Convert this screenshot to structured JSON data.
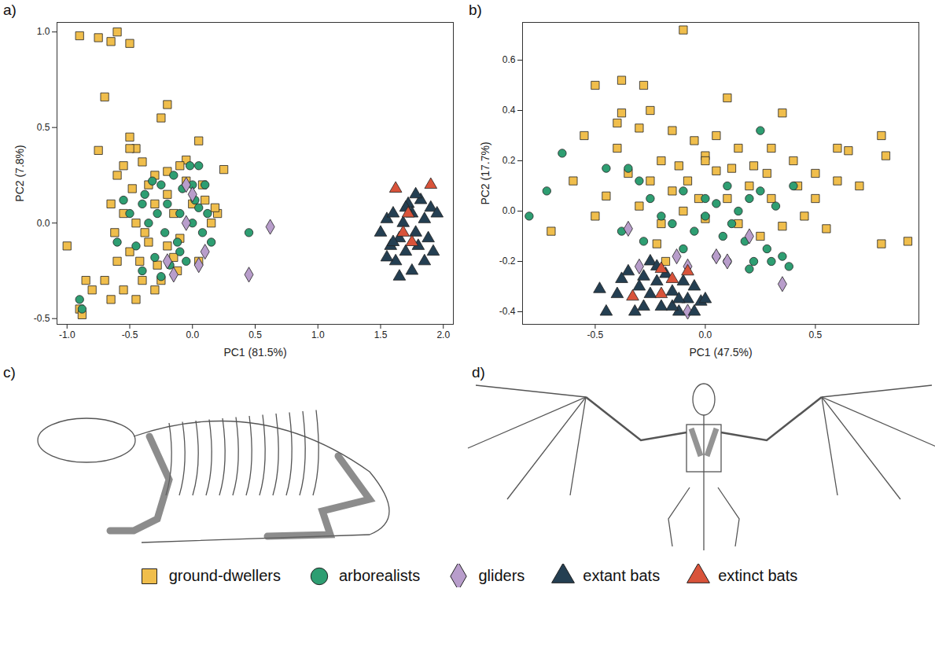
{
  "chart_data": [
    {
      "type": "scatter",
      "title": "a)",
      "xlabel": "PC1 (81.5%)",
      "ylabel": "PC2 (7.8%)",
      "xlim": [
        -1.08,
        2.08
      ],
      "ylim": [
        -0.53,
        1.05
      ],
      "xticks": [
        {
          "value": -1,
          "label": "-1.0"
        },
        -0.5,
        {
          "value": 0,
          "label": "0.0"
        },
        0.5,
        {
          "value": 1,
          "label": "1.0"
        },
        1.5,
        {
          "value": 2,
          "label": "2.0"
        }
      ],
      "yticks": [
        -0.5,
        {
          "value": 0,
          "label": "0.0"
        },
        0.5,
        {
          "value": 1,
          "label": "1.0"
        }
      ],
      "legend": "bottom",
      "series": [
        {
          "name": "ground-dwellers",
          "color": "#F0BE4C",
          "marker": "square",
          "x": [
            -0.9,
            -0.75,
            -0.65,
            -0.6,
            -0.5,
            -0.7,
            -0.2,
            -0.25,
            -0.75,
            -0.5,
            -0.45,
            -0.5,
            0.05,
            -0.55,
            -0.4,
            -0.3,
            -0.35,
            -0.48,
            -0.6,
            0.25,
            -0.05,
            -0.2,
            -0.1,
            -0.65,
            -0.55,
            -0.45,
            -0.38,
            -0.3,
            -0.2,
            -0.15,
            0.0,
            0.1,
            0.15,
            0.2,
            -0.5,
            -0.42,
            -0.35,
            -0.28,
            -0.2,
            -0.1,
            -1.0,
            -0.85,
            -0.8,
            -0.7,
            -0.9,
            -0.88,
            -0.65,
            -0.55,
            -0.45,
            -0.4,
            -0.6,
            -0.3,
            -0.25,
            -0.12,
            0.05,
            0.08,
            -0.05,
            -0.62,
            0.18,
            -0.15
          ],
          "y": [
            0.98,
            0.97,
            0.95,
            1.0,
            0.94,
            0.66,
            0.62,
            0.55,
            0.38,
            0.45,
            0.39,
            0.39,
            0.43,
            0.3,
            0.32,
            0.25,
            0.2,
            0.18,
            0.25,
            0.28,
            0.33,
            0.27,
            0.3,
            0.1,
            0.05,
            0.0,
            -0.05,
            0.1,
            0.15,
            0.05,
            0.1,
            0.12,
            0.0,
            0.05,
            -0.15,
            -0.2,
            -0.1,
            -0.22,
            -0.12,
            -0.08,
            -0.12,
            -0.3,
            -0.35,
            -0.3,
            -0.45,
            -0.48,
            -0.4,
            -0.35,
            -0.4,
            -0.3,
            -0.2,
            -0.35,
            -0.3,
            -0.25,
            -0.2,
            0.2,
            0.22,
            -0.05,
            0.08,
            -0.18
          ]
        },
        {
          "name": "arborealists",
          "color": "#2E9E72",
          "marker": "circle",
          "x": [
            -0.9,
            -0.88,
            -0.5,
            -0.45,
            -0.4,
            -0.35,
            -0.3,
            -0.28,
            -0.25,
            -0.22,
            -0.2,
            -0.15,
            -0.12,
            -0.1,
            -0.08,
            -0.05,
            -0.02,
            0.0,
            0.02,
            0.05,
            0.08,
            0.1,
            0.12,
            -0.4,
            -0.32,
            -0.18,
            0.15,
            -0.6,
            -0.55,
            0.45,
            -0.25,
            0.0,
            -0.1,
            0.05,
            -0.38
          ],
          "y": [
            -0.4,
            -0.45,
            0.05,
            -0.12,
            0.1,
            0.0,
            -0.18,
            0.05,
            0.2,
            -0.05,
            0.1,
            0.25,
            -0.1,
            0.05,
            0.18,
            -0.2,
            0.3,
            0.0,
            0.12,
            0.3,
            -0.05,
            0.2,
            0.05,
            -0.25,
            0.22,
            -0.22,
            -0.1,
            -0.1,
            0.12,
            -0.05,
            -0.28,
            0.2,
            -0.15,
            0.08,
            0.15
          ]
        },
        {
          "name": "gliders",
          "color": "#B89DCB",
          "marker": "diamond",
          "x": [
            -0.05,
            0.0,
            -0.2,
            -0.15,
            0.05,
            0.1,
            0.45,
            0.62,
            -0.05
          ],
          "y": [
            0.2,
            0.15,
            -0.2,
            -0.27,
            -0.22,
            -0.15,
            -0.27,
            -0.02,
            0.0
          ]
        },
        {
          "name": "extant bats",
          "color": "#243F52",
          "marker": "triangle",
          "x": [
            1.5,
            1.55,
            1.58,
            1.6,
            1.62,
            1.65,
            1.68,
            1.7,
            1.72,
            1.75,
            1.75,
            1.78,
            1.8,
            1.82,
            1.85,
            1.88,
            1.9,
            1.92,
            1.55,
            1.65,
            1.7,
            1.85,
            1.95,
            1.6,
            1.78
          ],
          "y": [
            -0.05,
            0.02,
            -0.12,
            0.05,
            -0.2,
            -0.08,
            0.0,
            -0.15,
            0.1,
            -0.25,
            0.05,
            -0.05,
            -0.12,
            0.12,
            0.02,
            -0.08,
            0.08,
            -0.15,
            -0.18,
            -0.28,
            0.08,
            -0.2,
            0.05,
            -0.1,
            0.15
          ]
        },
        {
          "name": "extinct bats",
          "color": "#D9533A",
          "marker": "triangle",
          "x": [
            1.62,
            1.9,
            1.72,
            1.68,
            1.75
          ],
          "y": [
            0.18,
            0.2,
            0.05,
            -0.05,
            -0.1
          ]
        }
      ]
    },
    {
      "type": "scatter",
      "title": "b)",
      "xlabel": "PC1 (47.5%)",
      "ylabel": "PC2 (17.7%)",
      "xlim": [
        -0.83,
        0.97
      ],
      "ylim": [
        -0.45,
        0.75
      ],
      "xticks": [
        -0.5,
        {
          "value": 0,
          "label": "0.0"
        },
        0.5
      ],
      "yticks": [
        -0.4,
        -0.2,
        {
          "value": 0,
          "label": "0.0"
        },
        0.2,
        0.4,
        0.6
      ],
      "legend": "bottom",
      "series": [
        {
          "name": "ground-dwellers",
          "color": "#F0BE4C",
          "marker": "square",
          "x": [
            -0.1,
            -0.5,
            -0.38,
            -0.28,
            -0.55,
            -0.38,
            -0.4,
            0.1,
            0.35,
            -0.25,
            -0.3,
            -0.15,
            -0.05,
            0.0,
            0.15,
            0.22,
            0.3,
            0.4,
            0.5,
            0.6,
            0.65,
            0.7,
            0.8,
            0.82,
            0.8,
            0.92,
            0.55,
            -0.6,
            -0.5,
            -0.7,
            -0.45,
            -0.35,
            -0.2,
            -0.12,
            -0.08,
            0.05,
            0.1,
            0.2,
            0.3,
            0.42,
            0.45,
            0.35,
            -0.3,
            -0.2,
            -0.1,
            0.0,
            0.15,
            -0.18,
            -0.22,
            0.05,
            -0.03,
            0.25,
            -0.4,
            0.6,
            0.12,
            -0.15,
            0.28,
            0.5,
            -0.25,
            0.0
          ],
          "y": [
            0.72,
            0.5,
            0.52,
            0.5,
            0.3,
            0.39,
            0.35,
            0.45,
            0.39,
            0.4,
            0.33,
            0.32,
            0.28,
            0.22,
            0.25,
            0.18,
            0.25,
            0.2,
            0.15,
            0.25,
            0.24,
            0.1,
            0.3,
            0.22,
            -0.13,
            -0.12,
            -0.07,
            0.12,
            -0.02,
            -0.08,
            0.06,
            0.15,
            0.2,
            0.18,
            0.12,
            0.16,
            0.05,
            0.1,
            0.05,
            0.1,
            -0.02,
            -0.06,
            0.02,
            -0.05,
            0.0,
            -0.03,
            -0.05,
            -0.2,
            -0.13,
            0.3,
            0.05,
            -0.1,
            0.25,
            0.12,
            0.17,
            0.08,
            0.15,
            0.05,
            0.12,
            0.2
          ]
        },
        {
          "name": "arborealists",
          "color": "#2E9E72",
          "marker": "circle",
          "x": [
            -0.65,
            -0.72,
            -0.8,
            -0.35,
            -0.3,
            -0.25,
            -0.2,
            -0.15,
            -0.1,
            -0.05,
            0.0,
            0.05,
            0.08,
            0.1,
            0.12,
            0.15,
            0.18,
            0.2,
            0.22,
            0.25,
            0.28,
            0.3,
            0.32,
            0.35,
            0.38,
            0.4,
            -0.38,
            -0.45,
            -0.1,
            0.2,
            0.0,
            0.05,
            -0.28,
            0.1,
            0.25
          ],
          "y": [
            0.23,
            0.08,
            -0.02,
            0.17,
            0.12,
            0.05,
            -0.02,
            -0.05,
            0.08,
            -0.08,
            -0.02,
            0.03,
            -0.1,
            0.1,
            -0.05,
            0.0,
            -0.12,
            0.05,
            -0.2,
            0.32,
            -0.15,
            -0.2,
            0.02,
            -0.18,
            -0.22,
            0.1,
            -0.08,
            0.17,
            -0.15,
            -0.23,
            0.05,
            -0.18,
            -0.12,
            -0.2,
            0.08
          ]
        },
        {
          "name": "gliders",
          "color": "#B89DCB",
          "marker": "diamond",
          "x": [
            -0.35,
            -0.3,
            -0.13,
            -0.08,
            0.05,
            0.1,
            0.2,
            0.35,
            -0.08
          ],
          "y": [
            -0.07,
            -0.22,
            -0.18,
            -0.22,
            -0.18,
            -0.2,
            -0.1,
            -0.29,
            -0.4
          ]
        },
        {
          "name": "extant bats",
          "color": "#243F52",
          "marker": "triangle",
          "x": [
            -0.48,
            -0.4,
            -0.35,
            -0.3,
            -0.28,
            -0.25,
            -0.25,
            -0.22,
            -0.2,
            -0.18,
            -0.15,
            -0.12,
            -0.1,
            -0.08,
            -0.05,
            -0.02,
            0.0,
            -0.32,
            -0.22,
            -0.15,
            -0.45,
            -0.38,
            -0.12,
            -0.05,
            -0.28
          ],
          "y": [
            -0.31,
            -0.33,
            -0.24,
            -0.3,
            -0.38,
            -0.2,
            -0.33,
            -0.28,
            -0.38,
            -0.25,
            -0.32,
            -0.4,
            -0.28,
            -0.35,
            -0.3,
            -0.36,
            -0.35,
            -0.4,
            -0.22,
            -0.38,
            -0.4,
            -0.27,
            -0.35,
            -0.4,
            -0.26
          ]
        },
        {
          "name": "extinct bats",
          "color": "#D9533A",
          "marker": "triangle",
          "x": [
            -0.33,
            -0.2,
            -0.15,
            -0.08,
            -0.2
          ],
          "y": [
            -0.34,
            -0.33,
            -0.27,
            -0.24,
            -0.23
          ]
        }
      ]
    }
  ],
  "illustrations": [
    {
      "label": "c)"
    },
    {
      "label": "d)"
    }
  ]
}
